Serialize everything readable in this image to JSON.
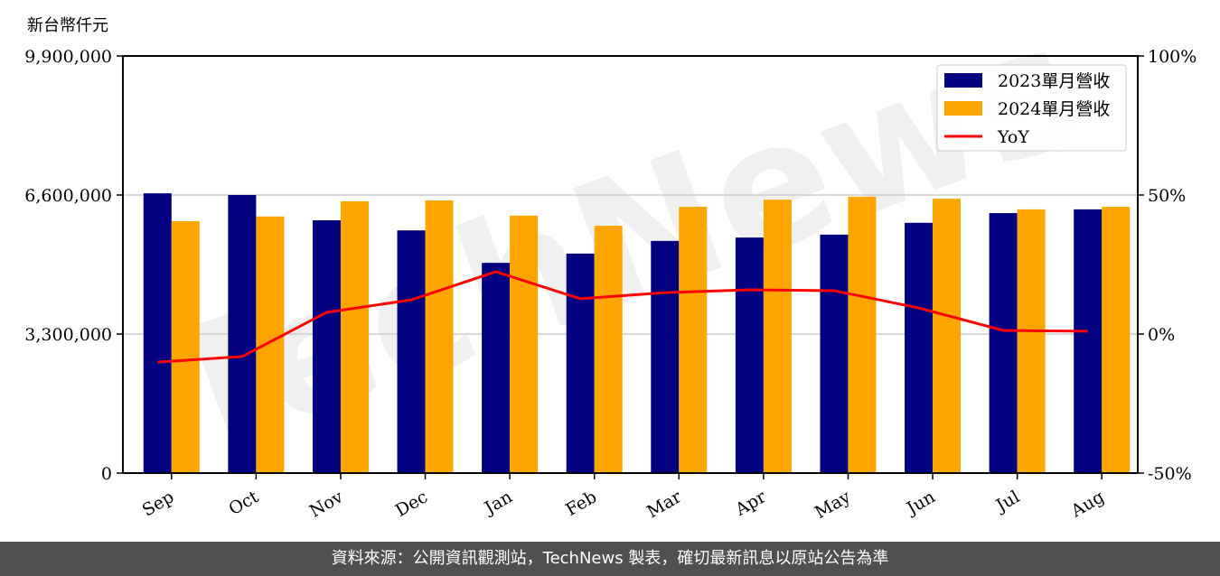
{
  "chart_data": {
    "type": "bar",
    "ylabel": "新台幣仟元",
    "categories": [
      "Sep",
      "Oct",
      "Nov",
      "Dec",
      "Jan",
      "Feb",
      "Mar",
      "Apr",
      "May",
      "Jun",
      "Jul",
      "Aug"
    ],
    "series": [
      {
        "name": "2023單月營收",
        "type": "bar",
        "color": "#000080",
        "values": [
          6640000,
          6600000,
          6000000,
          5760000,
          4990000,
          5210000,
          5510000,
          5590000,
          5660000,
          5940000,
          6170000,
          6260000
        ]
      },
      {
        "name": "2024單月營收",
        "type": "bar",
        "color": "#FFA500",
        "values": [
          5980000,
          6090000,
          6450000,
          6470000,
          6110000,
          5870000,
          6320000,
          6490000,
          6560000,
          6510000,
          6260000,
          6320000
        ]
      },
      {
        "name": "YoY",
        "type": "line",
        "axis": "right",
        "color": "#FF0000",
        "values": [
          -10.1,
          -8.1,
          7.8,
          12.3,
          22.4,
          12.7,
          14.9,
          15.9,
          15.6,
          9.4,
          1.3,
          1.0
        ]
      }
    ],
    "ylim": [
      0,
      9900000
    ],
    "yticks": [
      "0",
      "3,300,000",
      "6,600,000",
      "9,900,000"
    ],
    "y2lim": [
      -50,
      100
    ],
    "y2ticks": [
      "-50%",
      "0%",
      "50%",
      "100%"
    ],
    "grid": "horizontal",
    "legend": "top-right"
  },
  "watermark": "TechNews",
  "footer": "資料來源：公開資訊觀測站，TechNews 製表，確切最新訊息以原站公告為準"
}
